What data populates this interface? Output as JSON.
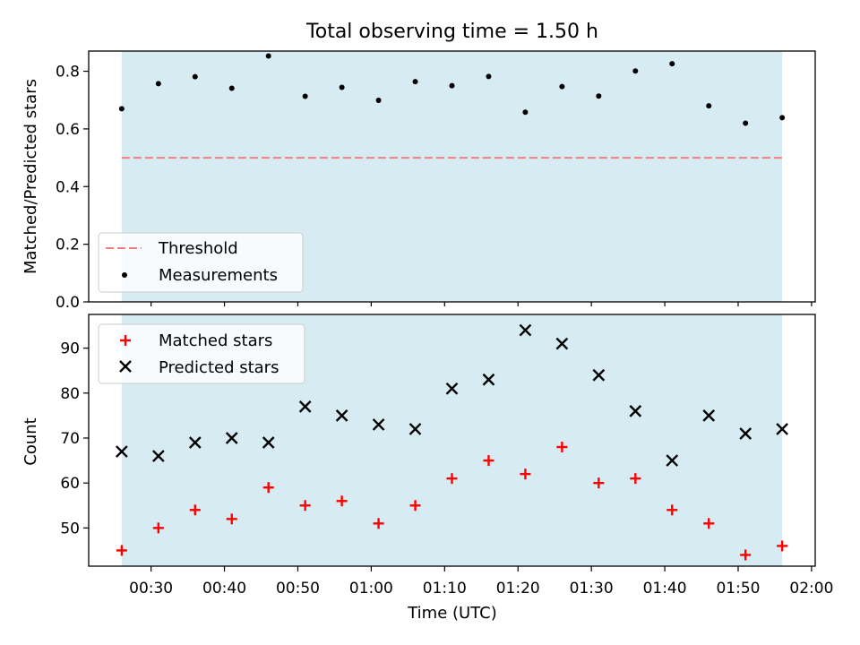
{
  "chart_data": [
    {
      "type": "scatter",
      "title": "Total observing time = 1.50 h",
      "xlabel": "",
      "ylabel": "Matched/Predicted stars",
      "ylim": [
        0,
        0.87
      ],
      "yticks": [
        "0.0",
        "0.2",
        "0.4",
        "0.6",
        "0.8"
      ],
      "shaded_span": [
        "00:26",
        "01:56"
      ],
      "shade_color": "#add8e6",
      "threshold": {
        "name": "Threshold",
        "value": 0.5,
        "color": "#f08080",
        "style": "dashed"
      },
      "series": [
        {
          "name": "Measurements",
          "marker": "dot",
          "color": "#000000",
          "x": [
            "00:26",
            "00:31",
            "00:36",
            "00:41",
            "00:46",
            "00:51",
            "00:56",
            "01:01",
            "01:06",
            "01:11",
            "01:16",
            "01:21",
            "01:26",
            "01:31",
            "01:36",
            "01:41",
            "01:46",
            "01:51",
            "01:56"
          ],
          "y": [
            0.67,
            0.757,
            0.781,
            0.741,
            0.853,
            0.713,
            0.744,
            0.699,
            0.764,
            0.75,
            0.782,
            0.658,
            0.747,
            0.714,
            0.801,
            0.826,
            0.68,
            0.62,
            0.639
          ]
        }
      ],
      "legend": "lower-left"
    },
    {
      "type": "scatter",
      "xlabel": "Time (UTC)",
      "ylabel": "Count",
      "ylim": [
        41.5,
        97.5
      ],
      "xlim": [
        "00:21.5",
        "02:00.5"
      ],
      "yticks": [
        "50",
        "60",
        "70",
        "80",
        "90"
      ],
      "xticks": [
        "00:30",
        "00:40",
        "00:50",
        "01:00",
        "01:10",
        "01:20",
        "01:30",
        "01:40",
        "01:50",
        "02:00"
      ],
      "shaded_span": [
        "00:26",
        "01:56"
      ],
      "shade_color": "#add8e6",
      "series": [
        {
          "name": "Matched stars",
          "marker": "plus",
          "color": "#ff0000",
          "x": [
            "00:26",
            "00:31",
            "00:36",
            "00:41",
            "00:46",
            "00:51",
            "00:56",
            "01:01",
            "01:06",
            "01:11",
            "01:16",
            "01:21",
            "01:26",
            "01:31",
            "01:36",
            "01:41",
            "01:46",
            "01:51",
            "01:56"
          ],
          "y": [
            45,
            50,
            54,
            52,
            59,
            55,
            56,
            51,
            55,
            61,
            65,
            62,
            68,
            60,
            61,
            54,
            51,
            44,
            46
          ]
        },
        {
          "name": "Predicted stars",
          "marker": "x",
          "color": "#000000",
          "x": [
            "00:26",
            "00:31",
            "00:36",
            "00:41",
            "00:46",
            "00:51",
            "00:56",
            "01:01",
            "01:06",
            "01:11",
            "01:16",
            "01:21",
            "01:26",
            "01:31",
            "01:36",
            "01:41",
            "01:46",
            "01:51",
            "01:56"
          ],
          "y": [
            67,
            66,
            69,
            70,
            69,
            77,
            75,
            73,
            72,
            81,
            83,
            94,
            91,
            84,
            76,
            65,
            75,
            71,
            72
          ]
        }
      ],
      "legend": "upper-left"
    }
  ]
}
